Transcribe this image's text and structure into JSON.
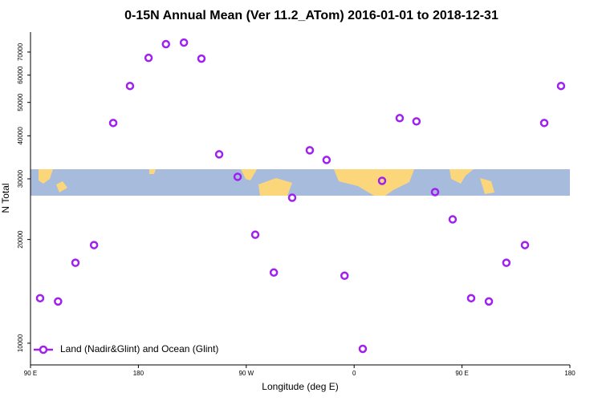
{
  "chart_data": {
    "type": "scatter",
    "title": "0-15N Annual Mean (Ver 11.2_ATom)   2016-01-01 to 2018-12-31",
    "x_label": "Longitude (deg E)",
    "y_label": "N Total",
    "log_y": true,
    "xlim": [
      90,
      540
    ],
    "ylim": [
      8650,
      80000
    ],
    "xticks": [
      {
        "value": 90,
        "label": "90 E"
      },
      180,
      {
        "value": 270,
        "label": "90 W"
      },
      {
        "value": 360,
        "label": "0"
      },
      {
        "value": 450,
        "label": "90 E"
      },
      {
        "value": 540,
        "label": "180"
      }
    ],
    "yticks": [
      10000,
      20000,
      30000,
      40000,
      50000,
      60000,
      70000
    ],
    "legend": "lower left",
    "series": [
      {
        "name": "Land (Nadir&Glint) and Ocean (Glint)",
        "color": "#a020f0",
        "x": [
          98,
          113,
          127.5,
          143,
          159,
          173,
          188.5,
          203,
          218,
          232.6,
          247.4,
          262.8,
          277.5,
          293,
          308.3,
          323,
          337,
          352,
          367.2,
          383.3,
          398,
          412,
          427.5,
          442.2,
          457.6,
          472.4,
          487,
          502.5,
          518.6,
          532.6
        ],
        "values": [
          13510,
          13220,
          17120,
          19270,
          43580,
          55800,
          67330,
          73800,
          74580,
          66990,
          35340,
          30410,
          20650,
          16040,
          26440,
          36310,
          34040,
          15700,
          9630,
          29600,
          45010,
          44050,
          27460,
          22880,
          13510,
          13220,
          17120,
          19270,
          43580,
          55800
        ]
      }
    ]
  }
}
